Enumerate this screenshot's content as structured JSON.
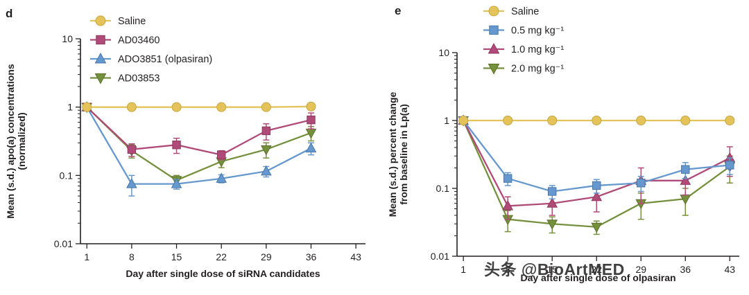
{
  "watermark": {
    "text": "头条 @BioArtMED"
  },
  "colors": {
    "axis": "#231f20",
    "saline": "#e4c45a",
    "magenta": "#b04a78",
    "blue": "#6598ce",
    "green": "#75903c"
  },
  "chart_data": [
    {
      "type": "line",
      "panel_label": "d",
      "xlabel": "Day after single dose of siRNA candidates",
      "ylabel_lines": [
        "Mean (s.d.) apo(a) concentrations",
        "(normalized)"
      ],
      "yscale": "log",
      "xlim": [
        0,
        44.5
      ],
      "ylim": [
        0.01,
        10
      ],
      "xticks": [
        1,
        8,
        15,
        22,
        29,
        36,
        43
      ],
      "yticks": [
        "10",
        "1",
        "0.1",
        "0.01"
      ],
      "grid": false,
      "legend_position": "top-left-inside",
      "x": [
        1,
        8,
        15,
        22,
        29,
        36
      ],
      "series": [
        {
          "name": "Saline",
          "marker": "circle",
          "color": "#e4c45a",
          "edge": "#c7a53e",
          "values": [
            1,
            1,
            1,
            1,
            1,
            1.02
          ],
          "err": [
            0.05,
            0.06,
            0.08,
            0.06,
            0.07,
            0.1
          ]
        },
        {
          "name": "AD03460",
          "marker": "square",
          "color": "#b04a78",
          "edge": "#8e3a60",
          "values": [
            1,
            0.24,
            0.28,
            0.2,
            0.45,
            0.65
          ],
          "err": [
            0.05,
            0.05,
            0.07,
            0.03,
            0.12,
            0.17
          ]
        },
        {
          "name": "ADO3851 (olpasiran)",
          "marker": "triangle-up",
          "color": "#6598ce",
          "edge": "#4a77a8",
          "values": [
            1,
            0.075,
            0.075,
            0.09,
            0.115,
            0.25
          ],
          "err": [
            0.05,
            0.025,
            0.012,
            0.012,
            0.02,
            0.05
          ]
        },
        {
          "name": "AD03853",
          "marker": "triangle-down",
          "color": "#75903c",
          "edge": "#5a7029",
          "values": [
            1,
            0.23,
            0.085,
            0.16,
            0.24,
            0.42
          ],
          "err": [
            0.05,
            0.05,
            0.015,
            0.03,
            0.06,
            0.1
          ]
        }
      ]
    },
    {
      "type": "line",
      "panel_label": "e",
      "xlabel": "Day after single dose of olpasiran",
      "ylabel_lines": [
        "Mean (s.d.) percent change",
        "from baseline in Lp(a)"
      ],
      "yscale": "log",
      "xlim": [
        0,
        44.5
      ],
      "ylim": [
        0.01,
        10
      ],
      "xticks": [
        1,
        8,
        15,
        22,
        29,
        36,
        43
      ],
      "yticks": [
        "10",
        "1",
        "0.1",
        "0.01"
      ],
      "grid": false,
      "legend_position": "top-left-inside",
      "x": [
        1,
        8,
        15,
        22,
        29,
        36,
        43
      ],
      "series": [
        {
          "name": "Saline",
          "marker": "circle",
          "color": "#e4c45a",
          "edge": "#c7a53e",
          "values": [
            1,
            1,
            1,
            1,
            1,
            1,
            1
          ],
          "err": [
            0.05,
            0.05,
            0.06,
            0.05,
            0.06,
            0.05,
            0.06
          ]
        },
        {
          "name": "0.5 mg kg⁻¹",
          "marker": "square",
          "color": "#6598ce",
          "edge": "#4a77a8",
          "values": [
            1,
            0.14,
            0.09,
            0.11,
            0.12,
            0.19,
            0.22
          ],
          "err": [
            0.05,
            0.03,
            0.02,
            0.025,
            0.03,
            0.05,
            0.06
          ]
        },
        {
          "name": "1.0 mg kg⁻¹",
          "marker": "triangle-up",
          "color": "#b04a78",
          "edge": "#8e3a60",
          "values": [
            1,
            0.055,
            0.06,
            0.075,
            0.13,
            0.13,
            0.28
          ],
          "err": [
            0.05,
            0.02,
            0.02,
            0.03,
            0.07,
            0.05,
            0.13
          ]
        },
        {
          "name": "2.0 mg kg⁻¹",
          "marker": "triangle-down",
          "color": "#75903c",
          "edge": "#5a7029",
          "values": [
            1,
            0.035,
            0.03,
            0.027,
            0.06,
            0.07,
            0.21
          ],
          "err": [
            0.05,
            0.012,
            0.008,
            0.006,
            0.025,
            0.03,
            0.09
          ]
        }
      ]
    }
  ]
}
